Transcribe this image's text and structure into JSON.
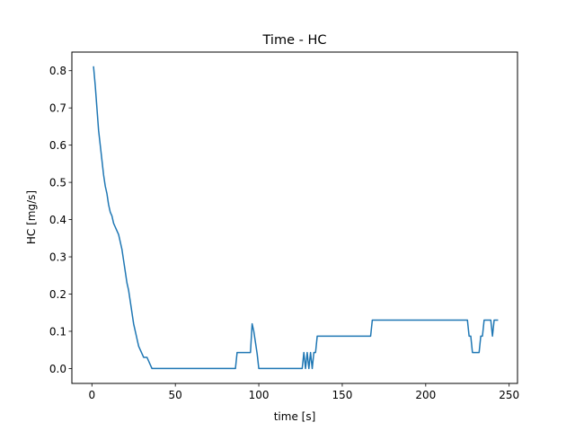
{
  "chart_data": {
    "type": "line",
    "title": "Time - HC",
    "xlabel": "time [s]",
    "ylabel": "HC [mg/s]",
    "xlim": [
      -12,
      255
    ],
    "ylim": [
      -0.04,
      0.85
    ],
    "xticks": [
      0,
      50,
      100,
      150,
      200,
      250
    ],
    "yticks": [
      0.0,
      0.1,
      0.2,
      0.3,
      0.4,
      0.5,
      0.6,
      0.7,
      0.8
    ],
    "ytick_labels": [
      "0.0",
      "0.1",
      "0.2",
      "0.3",
      "0.4",
      "0.5",
      "0.6",
      "0.7",
      "0.8"
    ],
    "grid": false,
    "series": [
      {
        "color": "#1f77b4",
        "x": [
          1,
          2,
          3,
          4,
          5,
          6,
          7,
          8,
          9,
          10,
          11,
          12,
          13,
          14,
          15,
          16,
          17,
          18,
          19,
          20,
          21,
          22,
          23,
          24,
          25,
          26,
          27,
          28,
          29,
          30,
          31,
          32,
          33,
          34,
          35,
          36,
          50,
          86,
          87,
          93,
          95,
          96,
          97,
          98,
          99,
          100,
          125,
          126,
          127,
          128,
          129,
          130,
          131,
          132,
          133,
          134,
          135,
          150,
          167,
          168,
          200,
          225,
          226,
          227,
          228,
          229,
          230,
          231,
          232,
          233,
          234,
          235,
          236,
          237,
          238,
          239,
          240,
          241,
          242,
          243
        ],
        "y": [
          0.81,
          0.76,
          0.7,
          0.64,
          0.6,
          0.56,
          0.52,
          0.49,
          0.47,
          0.44,
          0.42,
          0.41,
          0.39,
          0.38,
          0.37,
          0.36,
          0.34,
          0.32,
          0.29,
          0.26,
          0.23,
          0.21,
          0.18,
          0.15,
          0.12,
          0.1,
          0.08,
          0.06,
          0.05,
          0.04,
          0.03,
          0.03,
          0.03,
          0.02,
          0.01,
          0.0,
          0.0,
          0.0,
          0.043,
          0.043,
          0.043,
          0.12,
          0.1,
          0.07,
          0.04,
          0.0,
          0.0,
          0.0,
          0.043,
          0.0,
          0.043,
          0.0,
          0.043,
          0.0,
          0.043,
          0.043,
          0.087,
          0.087,
          0.087,
          0.13,
          0.13,
          0.13,
          0.087,
          0.087,
          0.043,
          0.043,
          0.043,
          0.043,
          0.043,
          0.087,
          0.087,
          0.13,
          0.13,
          0.13,
          0.13,
          0.13,
          0.087,
          0.13,
          0.13,
          0.13
        ]
      }
    ]
  }
}
